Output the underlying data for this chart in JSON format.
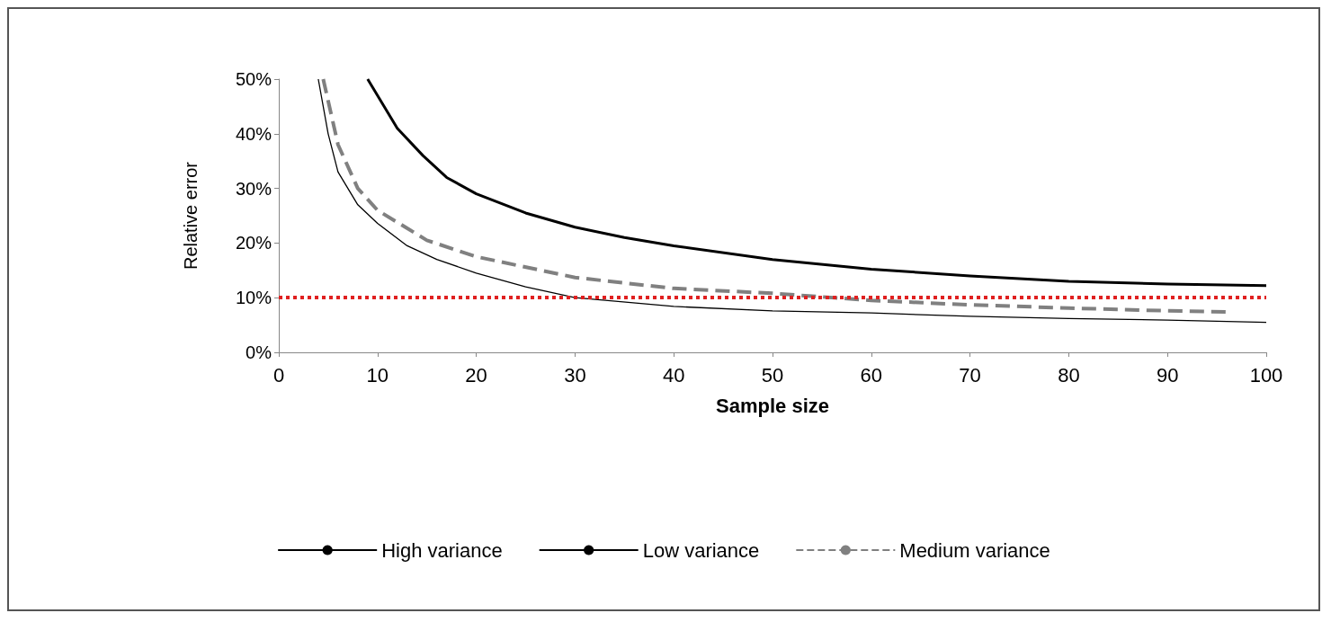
{
  "chart_data": {
    "type": "line",
    "xlabel": "Sample size",
    "ylabel": "Relative error",
    "xlim": [
      0,
      100
    ],
    "xticks": [
      0,
      10,
      20,
      30,
      40,
      50,
      60,
      70,
      80,
      90,
      100
    ],
    "ylim": [
      0,
      50
    ],
    "yticks": [
      {
        "value": 0,
        "label": "0%"
      },
      {
        "value": 10,
        "label": "10%"
      },
      {
        "value": 20,
        "label": "20%"
      },
      {
        "value": 30,
        "label": "30%"
      },
      {
        "value": 40,
        "label": "40%"
      },
      {
        "value": 50,
        "label": "50%"
      }
    ],
    "grid": false,
    "legend": "bottom",
    "marker": "none",
    "series": [
      {
        "name": "High variance",
        "color": "#000000",
        "line_style": "solid",
        "x": [
          9,
          12,
          14.6,
          17,
          20,
          25,
          30,
          35,
          40,
          50,
          60,
          70,
          80,
          90,
          100
        ],
        "values": [
          50,
          41,
          36,
          32,
          29,
          25.5,
          22.9,
          21,
          19.5,
          17,
          15.2,
          14,
          13,
          12.5,
          12.2
        ]
      },
      {
        "name": "Low variance",
        "color": "#000000",
        "line_style": "solid",
        "x": [
          4,
          5,
          6,
          8,
          10,
          13,
          16,
          20,
          25,
          30,
          40,
          50,
          60,
          70,
          80,
          90,
          100
        ],
        "values": [
          50,
          40,
          33,
          27,
          23.6,
          19.5,
          17,
          14.5,
          12,
          10,
          8.4,
          7.6,
          7.2,
          6.6,
          6.2,
          5.9,
          5.5
        ]
      },
      {
        "name": "Medium variance",
        "color": "#808080",
        "line_style": "dashed",
        "x": [
          4.5,
          6,
          8,
          10,
          15,
          20,
          30,
          40,
          50,
          60,
          70,
          80,
          90,
          96
        ],
        "values": [
          50,
          38,
          30,
          26,
          20.5,
          17.5,
          13.7,
          11.7,
          10.8,
          9.5,
          8.7,
          8.1,
          7.6,
          7.4
        ]
      }
    ],
    "ref_lines": [
      {
        "axis": "y",
        "value": 10,
        "color": "#e02020",
        "line_style": "dotted"
      }
    ]
  }
}
